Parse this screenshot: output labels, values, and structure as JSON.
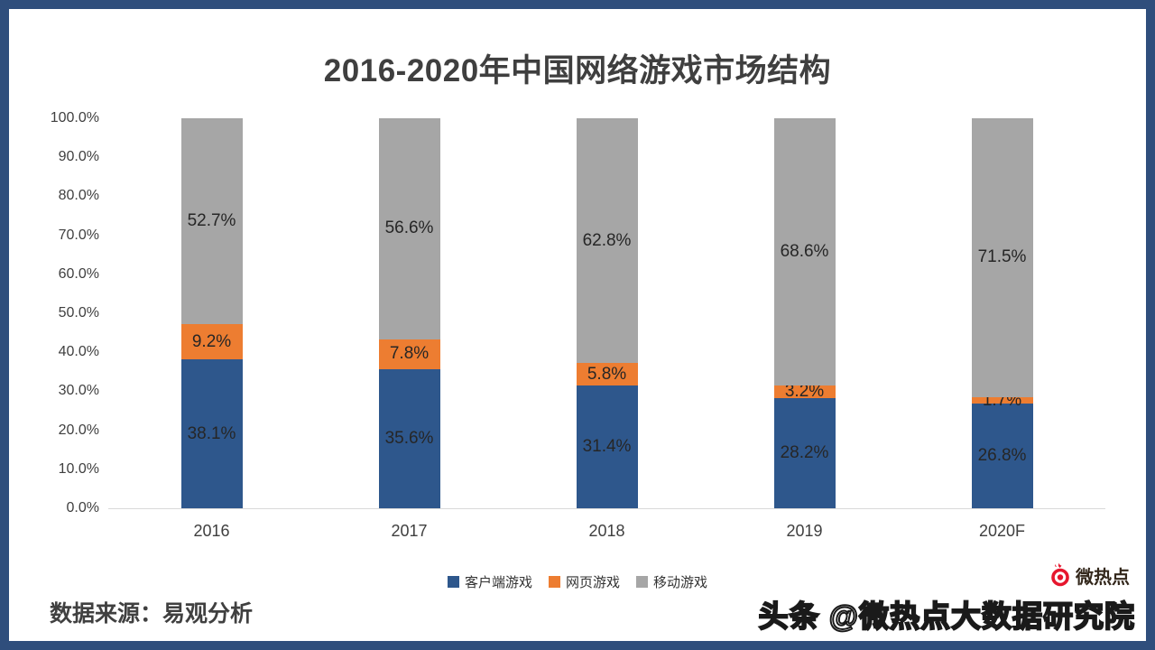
{
  "frame": {
    "border_color": "#2F4E7C",
    "background": "#FFFFFF"
  },
  "title": "2016-2020年中国网络游戏市场结构",
  "chart_data": {
    "type": "bar",
    "stacked": true,
    "title": "2016-2020年中国网络游戏市场结构",
    "categories": [
      "2016",
      "2017",
      "2018",
      "2019",
      "2020F"
    ],
    "series": [
      {
        "name": "客户端游戏",
        "color": "#2E578C",
        "values": [
          38.1,
          35.6,
          31.4,
          28.2,
          26.8
        ]
      },
      {
        "name": "网页游戏",
        "color": "#ED7D31",
        "values": [
          9.2,
          7.8,
          5.8,
          3.2,
          1.7
        ]
      },
      {
        "name": "移动游戏",
        "color": "#A6A6A6",
        "values": [
          52.7,
          56.6,
          62.8,
          68.6,
          71.5
        ]
      }
    ],
    "y_axis": {
      "min": 0,
      "max": 100,
      "ticks": [
        "100.0%",
        "90.0%",
        "80.0%",
        "70.0%",
        "60.0%",
        "50.0%",
        "40.0%",
        "30.0%",
        "20.0%",
        "10.0%",
        "0.0%"
      ]
    },
    "xlabel": "",
    "ylabel": "",
    "grid": false,
    "legend_position": "bottom",
    "data_label_suffix": "%"
  },
  "footer": {
    "source": "数据来源：易观分析"
  },
  "watermark": {
    "text": "头条 @微热点大数据研究院",
    "logo_text": "微热点",
    "logo_color": "#E6162D"
  }
}
